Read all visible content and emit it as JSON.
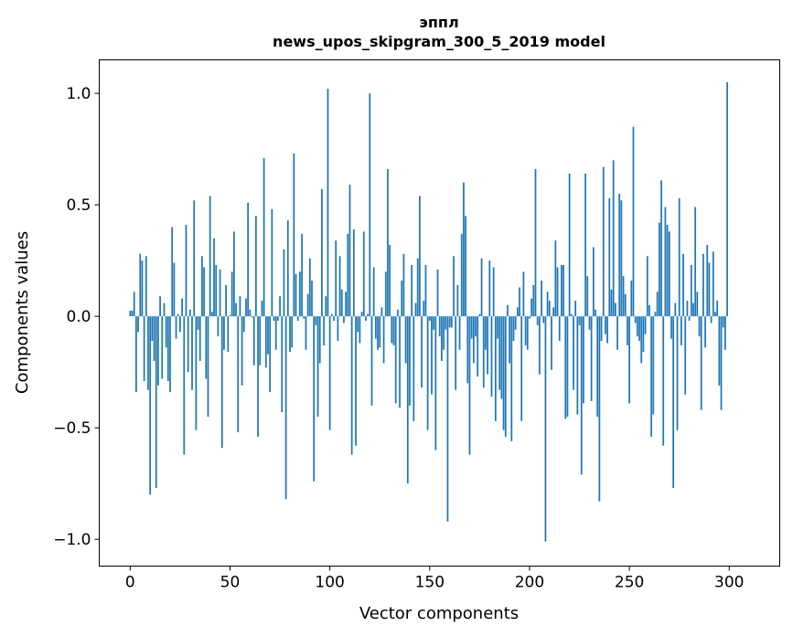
{
  "chart_data": {
    "type": "bar",
    "title": [
      "эппл",
      "news_upos_skipgram_300_5_2019 model"
    ],
    "xlabel": "Vector components",
    "ylabel": "Components values",
    "xlim": [
      -15.5,
      325.3
    ],
    "ylim": [
      -1.12,
      1.15
    ],
    "xticks": [
      0,
      50,
      100,
      150,
      200,
      250,
      300
    ],
    "xtick_labels": [
      "0",
      "50",
      "100",
      "150",
      "200",
      "250",
      "300"
    ],
    "yticks": [
      -1.0,
      -0.5,
      0.0,
      0.5,
      1.0
    ],
    "ytick_labels": [
      "−1.0",
      "−0.5",
      "0.0",
      "0.5",
      "1.0"
    ],
    "grid": false,
    "color": "#1f77b4",
    "values": [
      0.025,
      0.025,
      0.11,
      -0.34,
      -0.07,
      0.28,
      0.25,
      -0.29,
      0.27,
      -0.33,
      -0.8,
      -0.11,
      -0.2,
      -0.77,
      -0.31,
      0.09,
      -0.28,
      0.06,
      -0.14,
      -0.29,
      -0.34,
      0.4,
      0.24,
      -0.1,
      0.01,
      -0.07,
      0.08,
      -0.62,
      0.41,
      -0.25,
      0.03,
      -0.33,
      0.52,
      -0.51,
      -0.06,
      -0.2,
      0.27,
      0.22,
      -0.28,
      -0.45,
      0.54,
      0.02,
      0.35,
      0.23,
      -0.09,
      0.21,
      -0.59,
      -0.15,
      0.14,
      -0.16,
      0.005,
      0.2,
      0.38,
      0.06,
      -0.52,
      0.09,
      -0.31,
      -0.07,
      0.08,
      0.51,
      0.03,
      -0.005,
      -0.22,
      0.45,
      -0.54,
      -0.22,
      0.07,
      0.71,
      -0.23,
      -0.17,
      -0.34,
      0.48,
      -0.02,
      -0.15,
      -0.02,
      0.09,
      -0.43,
      0.3,
      -0.82,
      0.43,
      -0.16,
      -0.14,
      0.73,
      0.19,
      -0.02,
      0.2,
      0.37,
      -0.01,
      -0.15,
      0.1,
      0.26,
      0.16,
      -0.74,
      -0.04,
      -0.45,
      -0.21,
      0.57,
      -0.13,
      0.09,
      1.02,
      -0.51,
      0.01,
      -0.02,
      0.34,
      -0.11,
      0.27,
      0.12,
      -0.03,
      0.11,
      0.37,
      0.59,
      -0.62,
      0.39,
      -0.58,
      -0.07,
      -0.12,
      0.02,
      0.38,
      -0.02,
      0.01,
      1.0,
      -0.4,
      0.22,
      -0.1,
      -0.15,
      -0.14,
      0.04,
      -0.21,
      0.2,
      0.66,
      0.32,
      -0.12,
      -0.13,
      -0.39,
      0.03,
      -0.41,
      0.16,
      0.28,
      -0.21,
      -0.75,
      -0.4,
      0.23,
      -0.47,
      0.06,
      0.26,
      0.54,
      -0.32,
      0.07,
      0.23,
      -0.51,
      -0.02,
      -0.35,
      -0.06,
      -0.6,
      0.21,
      -0.09,
      -0.2,
      -0.15,
      -0.06,
      -0.92,
      -0.05,
      -0.05,
      0.27,
      -0.33,
      0.14,
      -0.15,
      0.37,
      0.6,
      0.45,
      -0.3,
      -0.62,
      -0.1,
      -0.21,
      -0.09,
      -0.27,
      0.01,
      0.26,
      -0.32,
      -0.15,
      -0.26,
      0.25,
      -0.36,
      0.22,
      -0.47,
      -0.1,
      -0.33,
      -0.37,
      -0.51,
      -0.54,
      0.05,
      -0.21,
      -0.56,
      -0.11,
      -0.06,
      0.04,
      0.13,
      -0.47,
      0.2,
      -0.13,
      -0.15,
      -0.01,
      0.08,
      0.14,
      0.66,
      -0.04,
      -0.26,
      0.16,
      -0.03,
      -1.01,
      0.11,
      0.07,
      -0.24,
      0.04,
      0.34,
      0.22,
      -0.11,
      0.23,
      0.23,
      -0.46,
      -0.45,
      0.64,
      0.01,
      -0.33,
      0.07,
      -0.44,
      -0.04,
      -0.71,
      -0.39,
      0.64,
      0.18,
      -0.06,
      -0.38,
      0.31,
      0.03,
      -0.45,
      -0.83,
      -0.11,
      0.67,
      -0.08,
      -0.12,
      0.53,
      0.12,
      0.7,
      0.06,
      -0.15,
      0.55,
      0.52,
      0.18,
      0.1,
      -0.13,
      -0.39,
      0.16,
      0.85,
      -0.03,
      -0.09,
      -0.11,
      -0.21,
      -0.16,
      -0.08,
      0.27,
      0.05,
      -0.54,
      -0.44,
      0.02,
      0.11,
      0.42,
      0.61,
      -0.58,
      0.49,
      0.41,
      0.38,
      -0.1,
      -0.77,
      0.06,
      -0.51,
      0.53,
      -0.13,
      0.28,
      -0.35,
      0.07,
      -0.02,
      0.23,
      0.06,
      0.49,
      0.11,
      -0.09,
      -0.42,
      0.28,
      -0.14,
      0.32,
      0.24,
      -0.03,
      0.29,
      0.02,
      0.07,
      -0.31,
      -0.42,
      -0.05,
      -0.15,
      1.05
    ]
  }
}
